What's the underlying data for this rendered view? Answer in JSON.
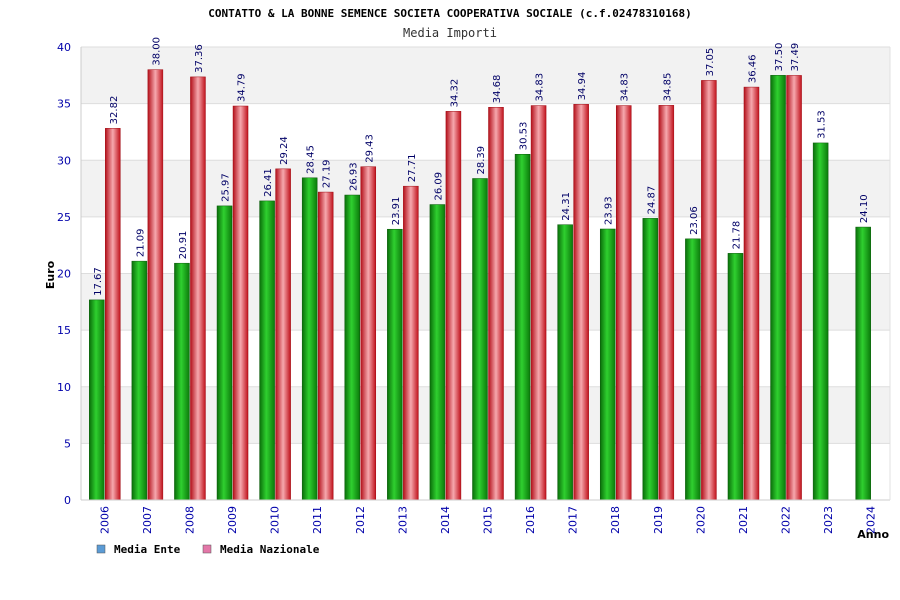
{
  "chart_data": {
    "type": "bar",
    "title": "CONTATTO & LA BONNE SEMENCE SOCIETA COOPERATIVA SOCIALE (c.f.02478310168)",
    "subtitle": "Media Importi",
    "xlabel": "Anno",
    "ylabel": "Euro",
    "ylim": [
      0,
      40
    ],
    "yticks": [
      0,
      5,
      10,
      15,
      20,
      25,
      30,
      35,
      40
    ],
    "grid": true,
    "legend_position": "bottom-left",
    "categories": [
      "2006",
      "2007",
      "2008",
      "2009",
      "2010",
      "2011",
      "2012",
      "2013",
      "2014",
      "2015",
      "2016",
      "2017",
      "2018",
      "2019",
      "2020",
      "2021",
      "2022",
      "2023",
      "2024"
    ],
    "series": [
      {
        "name": "Media Ente",
        "legend_color": "#5b9bd5",
        "bar_color": "#1aa31a",
        "values": [
          17.67,
          21.09,
          20.91,
          25.97,
          26.41,
          28.45,
          26.93,
          23.91,
          26.09,
          28.39,
          30.53,
          24.31,
          23.93,
          24.87,
          23.06,
          21.78,
          37.5,
          31.53,
          24.1
        ],
        "labels": [
          "17.67",
          "21.09",
          "20.91",
          "25.97",
          "26.41",
          "28.45",
          "26.93",
          "23.91",
          "26.09",
          "28.39",
          "30.53",
          "24.31",
          "23.93",
          "24.87",
          "23.06",
          "21.78",
          "37.50",
          "31.53",
          "24.10"
        ]
      },
      {
        "name": "Media Nazionale",
        "legend_color": "#e377a8",
        "bar_color": "#e8202a",
        "values": [
          32.82,
          38.0,
          37.36,
          34.79,
          29.24,
          27.19,
          29.43,
          27.71,
          34.32,
          34.68,
          34.83,
          34.94,
          34.83,
          34.85,
          37.05,
          36.46,
          37.49,
          null,
          null
        ],
        "labels": [
          "32.82",
          "38.00",
          "37.36",
          "34.79",
          "29.24",
          "27.19",
          "29.43",
          "27.71",
          "34.32",
          "34.68",
          "34.83",
          "34.94",
          "34.83",
          "34.85",
          "37.05",
          "36.46",
          "37.49",
          "",
          ""
        ]
      }
    ]
  }
}
